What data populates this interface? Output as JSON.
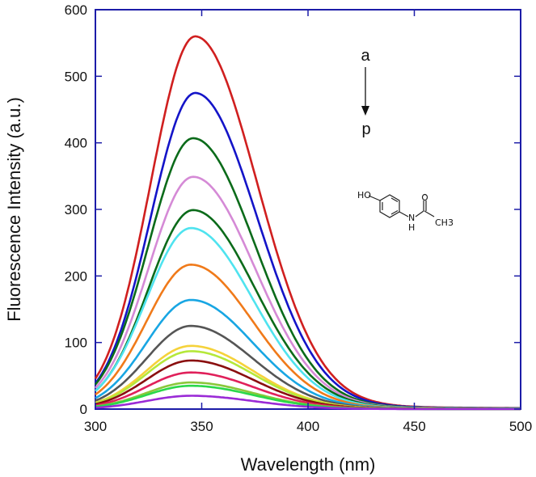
{
  "chart_data": {
    "type": "line",
    "title": "",
    "xlabel": "Wavelength (nm)",
    "ylabel": "Fluorescence Intensity (a.u.)",
    "xlim": [
      300,
      500
    ],
    "ylim": [
      0,
      600
    ],
    "x_ticks": [
      300,
      350,
      400,
      450,
      500
    ],
    "y_ticks": [
      0,
      100,
      200,
      300,
      400,
      500,
      600
    ],
    "grid": false,
    "legend": "none",
    "peak_wavelengths": [
      347,
      347,
      346,
      346,
      346,
      345,
      345,
      345,
      345,
      345,
      345,
      345,
      345,
      345,
      345,
      345
    ],
    "series": [
      {
        "peak": 560,
        "color": "#d01f1f"
      },
      {
        "peak": 475,
        "color": "#1414c8"
      },
      {
        "peak": 407,
        "color": "#0b6b1a"
      },
      {
        "peak": 349,
        "color": "#d58ad6"
      },
      {
        "peak": 299,
        "color": "#0b6b1a"
      },
      {
        "peak": 272,
        "color": "#4fe3ef"
      },
      {
        "peak": 217,
        "color": "#f07a1a"
      },
      {
        "peak": 164,
        "color": "#18a6e3"
      },
      {
        "peak": 125,
        "color": "#555555"
      },
      {
        "peak": 95,
        "color": "#f5d23a"
      },
      {
        "peak": 87,
        "color": "#b5e83a"
      },
      {
        "peak": 73,
        "color": "#8a0f0f"
      },
      {
        "peak": 55,
        "color": "#e0205a"
      },
      {
        "peak": 40,
        "color": "#8ac83a"
      },
      {
        "peak": 35,
        "color": "#2ad84a"
      },
      {
        "peak": 20,
        "color": "#9a2ad6"
      }
    ],
    "annotations": {
      "start": "a",
      "end": "p"
    },
    "molecule_labels": {
      "hydroxyl": "HO",
      "amine": "N",
      "hydrogen": "H",
      "methyl": "CH3"
    },
    "colors": {
      "axis": "#1c1ca8"
    }
  }
}
